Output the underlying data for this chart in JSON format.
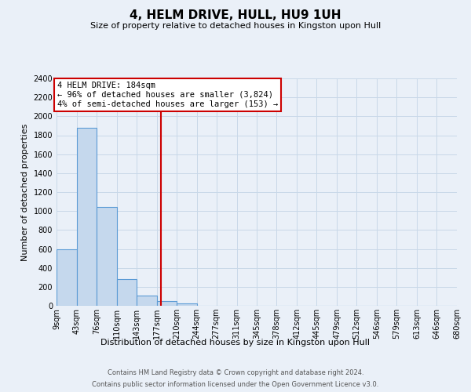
{
  "title": "4, HELM DRIVE, HULL, HU9 1UH",
  "subtitle": "Size of property relative to detached houses in Kingston upon Hull",
  "xlabel": "Distribution of detached houses by size in Kingston upon Hull",
  "ylabel": "Number of detached properties",
  "footer_line1": "Contains HM Land Registry data © Crown copyright and database right 2024.",
  "footer_line2": "Contains public sector information licensed under the Open Government Licence v3.0.",
  "bin_edges": [
    9,
    43,
    76,
    110,
    143,
    177,
    210,
    244,
    277,
    311,
    345,
    378,
    412,
    445,
    479,
    512,
    546,
    579,
    613,
    646,
    680
  ],
  "bin_labels": [
    "9sqm",
    "43sqm",
    "76sqm",
    "110sqm",
    "143sqm",
    "177sqm",
    "210sqm",
    "244sqm",
    "277sqm",
    "311sqm",
    "345sqm",
    "378sqm",
    "412sqm",
    "445sqm",
    "479sqm",
    "512sqm",
    "546sqm",
    "579sqm",
    "613sqm",
    "646sqm",
    "680sqm"
  ],
  "bar_heights": [
    600,
    1880,
    1040,
    280,
    110,
    50,
    25,
    0,
    0,
    0,
    0,
    0,
    0,
    0,
    0,
    0,
    0,
    0,
    0,
    0
  ],
  "bar_color": "#c5d8ed",
  "bar_edge_color": "#5b9bd5",
  "property_size": 184,
  "vline_color": "#cc0000",
  "ylim": [
    0,
    2400
  ],
  "yticks": [
    0,
    200,
    400,
    600,
    800,
    1000,
    1200,
    1400,
    1600,
    1800,
    2000,
    2200,
    2400
  ],
  "annotation_title": "4 HELM DRIVE: 184sqm",
  "annotation_line1": "← 96% of detached houses are smaller (3,824)",
  "annotation_line2": "4% of semi-detached houses are larger (153) →",
  "annotation_box_color": "#ffffff",
  "annotation_box_edge": "#cc0000",
  "grid_color": "#c8d8e8",
  "background_color": "#eaf0f8",
  "title_fontsize": 11,
  "subtitle_fontsize": 8,
  "ylabel_fontsize": 8,
  "xlabel_fontsize": 8,
  "tick_fontsize": 7,
  "footer_fontsize": 6,
  "footer_color": "#555555"
}
